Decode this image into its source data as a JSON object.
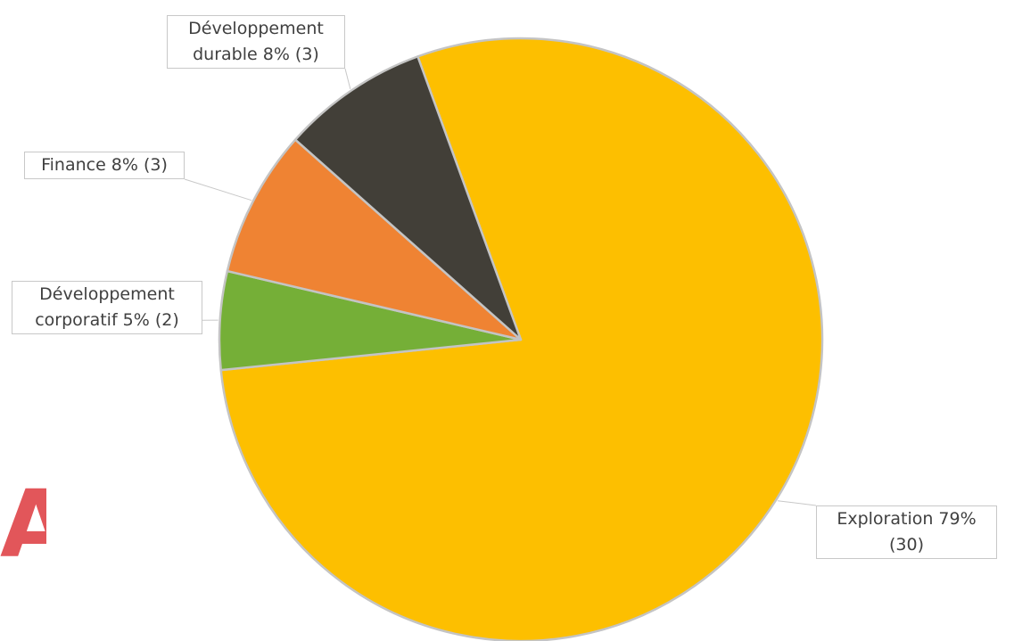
{
  "badge": {
    "letter": "A",
    "color": "#e2565a"
  },
  "chart_data": {
    "type": "pie",
    "title": "",
    "start_angle_deg": -20,
    "direction": "clockwise",
    "slice_border_color": "#c4c4c4",
    "leader_line_color": "#c8c8c8",
    "slices": [
      {
        "category": "Exploration",
        "value": 30,
        "percent": "79%",
        "color": "#fdbf00",
        "label_lines": [
          "Exploration 79%",
          "(30)"
        ]
      },
      {
        "category": "Développement corporatif",
        "value": 2,
        "percent": "5%",
        "color": "#75af37",
        "label_lines": [
          "Développement",
          "corporatif  5% (2)"
        ]
      },
      {
        "category": "Finance",
        "value": 3,
        "percent": "8%",
        "color": "#ef8333",
        "label_lines": [
          "Finance 8% (3)"
        ]
      },
      {
        "category": "Développement durable",
        "value": 3,
        "percent": "8%",
        "color": "#423f38",
        "label_lines": [
          "Développement",
          "durable 8% (3)"
        ]
      }
    ]
  }
}
